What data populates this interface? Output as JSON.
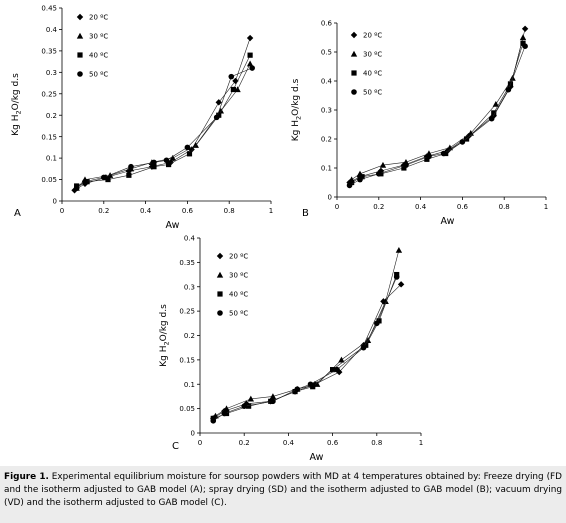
{
  "caption": {
    "label": "Figure 1.",
    "text": "Experimental equilibrium moisture for soursop powders with MD at 4 temperatures obtained by: Freeze drying (FD and the isotherm adjusted to GAB model (A); spray drying (SD) and the isotherm adjusted to GAB model (B); vacuum drying (VD) and the isotherm adjusted to GAB model (C)."
  },
  "chart_data": [
    {
      "type": "scatter",
      "panel_label": "A",
      "xlabel": "Aw",
      "ylabel": "Kg H2O/kg d.s",
      "xlim": [
        0,
        1
      ],
      "ylim": [
        0,
        0.45
      ],
      "x_ticks": [
        "0",
        "0.2",
        "0.4",
        "0.6",
        "0.8",
        "1"
      ],
      "y_ticks": [
        "0",
        "0.05",
        "0.1",
        "0.15",
        "0.2",
        "0.25",
        "0.3",
        "0.35",
        "0.4",
        "0.45"
      ],
      "legend": [
        "20 ºC",
        "30 ºC",
        "40 ºC",
        "50 ºC"
      ],
      "series": [
        {
          "name": "20 ºC",
          "marker": "diamond",
          "points": [
            [
              0.06,
              0.025
            ],
            [
              0.11,
              0.04
            ],
            [
              0.21,
              0.055
            ],
            [
              0.32,
              0.07
            ],
            [
              0.43,
              0.08
            ],
            [
              0.52,
              0.09
            ],
            [
              0.62,
              0.12
            ],
            [
              0.75,
              0.23
            ],
            [
              0.83,
              0.28
            ],
            [
              0.9,
              0.38
            ]
          ]
        },
        {
          "name": "30 ºC",
          "marker": "triangle",
          "points": [
            [
              0.07,
              0.03
            ],
            [
              0.11,
              0.05
            ],
            [
              0.23,
              0.06
            ],
            [
              0.33,
              0.075
            ],
            [
              0.43,
              0.09
            ],
            [
              0.53,
              0.1
            ],
            [
              0.64,
              0.13
            ],
            [
              0.76,
              0.21
            ],
            [
              0.84,
              0.26
            ],
            [
              0.9,
              0.32
            ]
          ]
        },
        {
          "name": "40 ºC",
          "marker": "square",
          "points": [
            [
              0.07,
              0.035
            ],
            [
              0.12,
              0.045
            ],
            [
              0.22,
              0.05
            ],
            [
              0.32,
              0.06
            ],
            [
              0.44,
              0.08
            ],
            [
              0.51,
              0.085
            ],
            [
              0.61,
              0.11
            ],
            [
              0.75,
              0.2
            ],
            [
              0.82,
              0.26
            ],
            [
              0.9,
              0.34
            ]
          ]
        },
        {
          "name": "50 ºC",
          "marker": "circle",
          "points": [
            [
              0.07,
              0.03
            ],
            [
              0.11,
              0.045
            ],
            [
              0.2,
              0.055
            ],
            [
              0.33,
              0.08
            ],
            [
              0.44,
              0.09
            ],
            [
              0.5,
              0.095
            ],
            [
              0.6,
              0.125
            ],
            [
              0.74,
              0.195
            ],
            [
              0.81,
              0.29
            ],
            [
              0.91,
              0.31
            ]
          ]
        }
      ]
    },
    {
      "type": "scatter",
      "panel_label": "B",
      "xlabel": "Aw",
      "ylabel": "Kg H2O/kg d.s",
      "xlim": [
        0,
        1
      ],
      "ylim": [
        0,
        0.6
      ],
      "x_ticks": [
        "0",
        "0.2",
        "0.4",
        "0.6",
        "0.8",
        "1"
      ],
      "y_ticks": [
        "0",
        "0.1",
        "0.2",
        "0.3",
        "0.4",
        "0.5",
        "0.6"
      ],
      "legend": [
        "20 ºC",
        "30 ºC",
        "40 ºC",
        "50 ºC"
      ],
      "series": [
        {
          "name": "20 ºC",
          "marker": "diamond",
          "points": [
            [
              0.06,
              0.05
            ],
            [
              0.11,
              0.07
            ],
            [
              0.21,
              0.09
            ],
            [
              0.32,
              0.11
            ],
            [
              0.43,
              0.14
            ],
            [
              0.53,
              0.16
            ],
            [
              0.63,
              0.21
            ],
            [
              0.75,
              0.28
            ],
            [
              0.83,
              0.38
            ],
            [
              0.9,
              0.58
            ]
          ]
        },
        {
          "name": "30 ºC",
          "marker": "triangle",
          "points": [
            [
              0.07,
              0.06
            ],
            [
              0.11,
              0.08
            ],
            [
              0.22,
              0.11
            ],
            [
              0.33,
              0.12
            ],
            [
              0.44,
              0.15
            ],
            [
              0.54,
              0.17
            ],
            [
              0.64,
              0.22
            ],
            [
              0.76,
              0.32
            ],
            [
              0.84,
              0.41
            ],
            [
              0.89,
              0.55
            ]
          ]
        },
        {
          "name": "40 ºC",
          "marker": "square",
          "points": [
            [
              0.07,
              0.05
            ],
            [
              0.12,
              0.07
            ],
            [
              0.21,
              0.08
            ],
            [
              0.32,
              0.1
            ],
            [
              0.43,
              0.13
            ],
            [
              0.52,
              0.15
            ],
            [
              0.62,
              0.2
            ],
            [
              0.75,
              0.29
            ],
            [
              0.83,
              0.39
            ],
            [
              0.89,
              0.53
            ]
          ]
        },
        {
          "name": "50 ºC",
          "marker": "circle",
          "points": [
            [
              0.06,
              0.04
            ],
            [
              0.11,
              0.06
            ],
            [
              0.2,
              0.08
            ],
            [
              0.33,
              0.11
            ],
            [
              0.44,
              0.14
            ],
            [
              0.51,
              0.15
            ],
            [
              0.6,
              0.19
            ],
            [
              0.74,
              0.27
            ],
            [
              0.82,
              0.37
            ],
            [
              0.9,
              0.52
            ]
          ]
        }
      ]
    },
    {
      "type": "scatter",
      "panel_label": "C",
      "xlabel": "Aw",
      "ylabel": "Kg H2O/kg d.s",
      "xlim": [
        0,
        1
      ],
      "ylim": [
        0,
        0.4
      ],
      "x_ticks": [
        "0",
        "0.2",
        "0.4",
        "0.6",
        "0.8",
        "1"
      ],
      "y_ticks": [
        "0",
        "0.05",
        "0.1",
        "0.15",
        "0.2",
        "0.25",
        "0.3",
        "0.35",
        "0.4"
      ],
      "legend": [
        "20 ºC",
        "30 ºC",
        "40 ºC",
        "50 ºC"
      ],
      "series": [
        {
          "name": "20 ºC",
          "marker": "diamond",
          "points": [
            [
              0.06,
              0.03
            ],
            [
              0.11,
              0.045
            ],
            [
              0.21,
              0.06
            ],
            [
              0.32,
              0.065
            ],
            [
              0.43,
              0.085
            ],
            [
              0.52,
              0.1
            ],
            [
              0.63,
              0.125
            ],
            [
              0.74,
              0.18
            ],
            [
              0.83,
              0.27
            ],
            [
              0.91,
              0.305
            ]
          ]
        },
        {
          "name": "30 ºC",
          "marker": "triangle",
          "points": [
            [
              0.07,
              0.035
            ],
            [
              0.12,
              0.05
            ],
            [
              0.23,
              0.07
            ],
            [
              0.33,
              0.075
            ],
            [
              0.44,
              0.09
            ],
            [
              0.53,
              0.1
            ],
            [
              0.64,
              0.15
            ],
            [
              0.76,
              0.19
            ],
            [
              0.84,
              0.27
            ],
            [
              0.9,
              0.375
            ]
          ]
        },
        {
          "name": "40 ºC",
          "marker": "square",
          "points": [
            [
              0.06,
              0.03
            ],
            [
              0.12,
              0.04
            ],
            [
              0.22,
              0.055
            ],
            [
              0.32,
              0.065
            ],
            [
              0.43,
              0.085
            ],
            [
              0.51,
              0.095
            ],
            [
              0.6,
              0.13
            ],
            [
              0.75,
              0.18
            ],
            [
              0.81,
              0.23
            ],
            [
              0.89,
              0.325
            ]
          ]
        },
        {
          "name": "50 ºC",
          "marker": "circle",
          "points": [
            [
              0.06,
              0.025
            ],
            [
              0.11,
              0.04
            ],
            [
              0.2,
              0.055
            ],
            [
              0.33,
              0.065
            ],
            [
              0.44,
              0.09
            ],
            [
              0.5,
              0.1
            ],
            [
              0.62,
              0.13
            ],
            [
              0.74,
              0.175
            ],
            [
              0.8,
              0.225
            ],
            [
              0.89,
              0.32
            ]
          ]
        }
      ]
    }
  ]
}
